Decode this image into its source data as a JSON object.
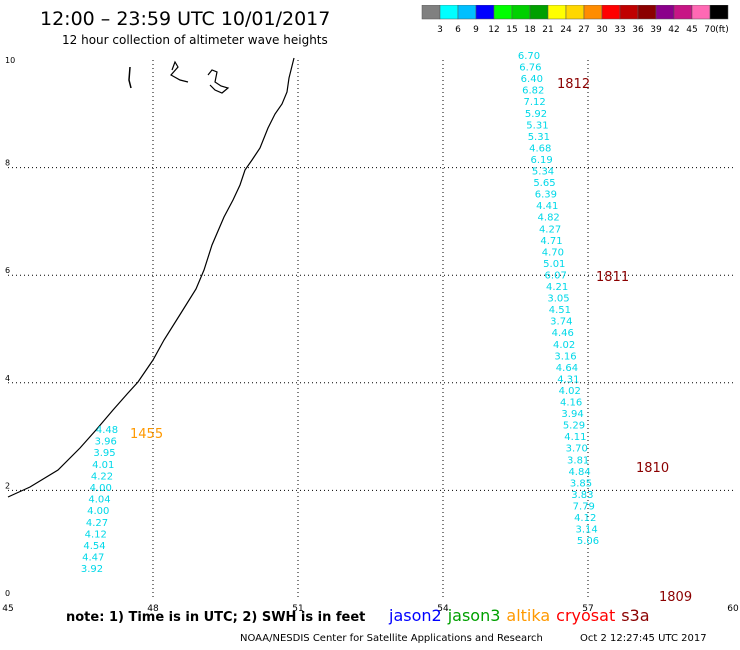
{
  "header": {
    "title": "12:00 – 23:59 UTC 10/01/2017",
    "subtitle": "12 hour collection of altimeter wave heights"
  },
  "legend": {
    "colors": [
      "#808080",
      "#00ffff",
      "#00bfff",
      "#0000ff",
      "#00ff00",
      "#00d000",
      "#00a000",
      "#ffff00",
      "#ffd700",
      "#ff8c00",
      "#ff0000",
      "#c00000",
      "#8b0000",
      "#8b008b",
      "#c71585",
      "#ff69b4",
      "#000000"
    ],
    "labels": [
      "3",
      "6",
      "9",
      "12",
      "15",
      "18",
      "21",
      "24",
      "27",
      "30",
      "33",
      "36",
      "39",
      "42",
      "45",
      "70",
      "(ft)"
    ]
  },
  "map": {
    "x_ticks": [
      "45",
      "48",
      "51",
      "54",
      "57",
      "60"
    ],
    "y_ticks": [
      "0",
      "2",
      "4",
      "6",
      "8",
      "10"
    ],
    "xlim": [
      45,
      60
    ],
    "ylim": [
      0,
      10
    ]
  },
  "tracks": [
    {
      "color": "#00d8e8",
      "values": [
        "6.70",
        "6.76",
        "6.40",
        "6.82",
        "7.12",
        "5.92",
        "5.31",
        "5.31",
        "4.68",
        "6.19",
        "5.34",
        "5.65",
        "6.39",
        "4.41",
        "4.82",
        "4.27",
        "4.71",
        "4.70",
        "5.01",
        "6.07",
        "4.21",
        "3.05",
        "4.51",
        "3.74",
        "4.46",
        "4.02",
        "3.16",
        "4.64",
        "4.31",
        "4.02",
        "4.16",
        "3.94",
        "5.29",
        "4.11",
        "3.70",
        "3.81",
        "4.84",
        "3.85",
        "3.83",
        "7.79",
        "4.12",
        "3.14",
        "5.06"
      ]
    },
    {
      "color": "#00d8e8",
      "values": [
        "4.48",
        "3.96",
        "3.95",
        "4.01",
        "4.22",
        "4.00",
        "4.04",
        "4.00",
        "4.27",
        "4.12",
        "4.54",
        "4.47",
        "3.92"
      ]
    }
  ],
  "time_labels": [
    {
      "text": "1812",
      "color": "#8b0000"
    },
    {
      "text": "1811",
      "color": "#8b0000"
    },
    {
      "text": "1810",
      "color": "#8b0000"
    },
    {
      "text": "1809",
      "color": "#8b0000"
    },
    {
      "text": "1455",
      "color": "#ff9900"
    }
  ],
  "satellites": [
    {
      "name": "jason2",
      "color": "#0000ff"
    },
    {
      "name": "jason3",
      "color": "#00a000"
    },
    {
      "name": "altika",
      "color": "#ff9900"
    },
    {
      "name": "cryosat",
      "color": "#ff0000"
    },
    {
      "name": "s3a",
      "color": "#8b0000"
    }
  ],
  "note": "note: 1) Time is in UTC; 2) SWH is in feet",
  "footer": {
    "source": "NOAA/NESDIS Center for Satellite Applications and Research",
    "timestamp": "Oct  2 12:27:45 UTC 2017"
  }
}
